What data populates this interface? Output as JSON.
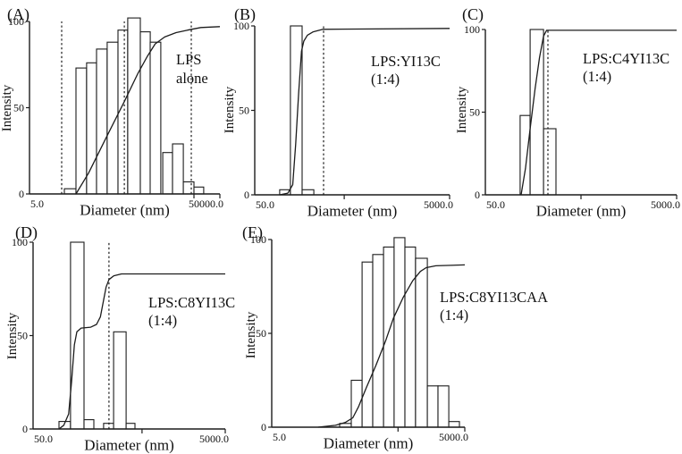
{
  "figure": {
    "background": "#ffffff",
    "ink_color": "#1c1c1c",
    "description": "Five-panel particle size distribution figure: intensity histograms with cumulative curves"
  },
  "chart_data": [
    {
      "id": "A",
      "type": "bar",
      "panel_label": "(A)",
      "annotation_lines": [
        "LPS",
        "alone"
      ],
      "xlabel": "Diameter (nm)",
      "ylabel": "Intensity",
      "x_min_label": "5.0",
      "x_max_label": "50000.0",
      "x_scale": "log",
      "ylim": [
        0,
        100
      ],
      "y_ticks": [
        0,
        50,
        100
      ],
      "y_tick_labels": [
        "0",
        "50",
        "100"
      ],
      "bars": [
        {
          "f0": 0.183,
          "f1": 0.244,
          "v": 3
        },
        {
          "f0": 0.244,
          "f1": 0.3,
          "v": 73
        },
        {
          "f0": 0.3,
          "f1": 0.352,
          "v": 76
        },
        {
          "f0": 0.352,
          "f1": 0.408,
          "v": 84
        },
        {
          "f0": 0.408,
          "f1": 0.465,
          "v": 88
        },
        {
          "f0": 0.465,
          "f1": 0.516,
          "v": 95
        },
        {
          "f0": 0.516,
          "f1": 0.582,
          "v": 102
        },
        {
          "f0": 0.582,
          "f1": 0.634,
          "v": 94
        },
        {
          "f0": 0.634,
          "f1": 0.69,
          "v": 88
        },
        {
          "f0": 0.7,
          "f1": 0.751,
          "v": 24
        },
        {
          "f0": 0.751,
          "f1": 0.808,
          "v": 29
        },
        {
          "f0": 0.808,
          "f1": 0.864,
          "v": 7
        },
        {
          "f0": 0.864,
          "f1": 0.915,
          "v": 4
        }
      ],
      "cumulative_curve": [
        [
          0.244,
          0
        ],
        [
          0.31,
          12
        ],
        [
          0.4,
          32
        ],
        [
          0.5,
          54
        ],
        [
          0.57,
          70
        ],
        [
          0.62,
          80
        ],
        [
          0.66,
          87
        ],
        [
          0.71,
          91
        ],
        [
          0.77,
          93.5
        ],
        [
          0.83,
          95
        ],
        [
          0.9,
          96.5
        ],
        [
          1.0,
          97
        ]
      ],
      "dashed_lines_f": [
        0.169,
        0.498,
        0.85
      ],
      "x_axis_ticks_f": [
        0.864,
        1.0
      ]
    },
    {
      "id": "B",
      "type": "bar",
      "panel_label": "(B)",
      "annotation_lines": [
        "LPS:YI13C",
        "(1:4)"
      ],
      "xlabel": "Diameter (nm)",
      "ylabel": "Intensity",
      "x_min_label": "50.0",
      "x_max_label": "5000.0",
      "x_scale": "log",
      "ylim": [
        0,
        100
      ],
      "y_ticks": [
        0,
        50,
        100
      ],
      "y_tick_labels": [
        "0",
        "50",
        "100"
      ],
      "bars": [
        {
          "f0": 0.128,
          "f1": 0.183,
          "v": 3
        },
        {
          "f0": 0.183,
          "f1": 0.243,
          "v": 100
        },
        {
          "f0": 0.243,
          "f1": 0.303,
          "v": 3
        }
      ],
      "cumulative_curve": [
        [
          0.128,
          0
        ],
        [
          0.17,
          1
        ],
        [
          0.195,
          6
        ],
        [
          0.21,
          30
        ],
        [
          0.225,
          60
        ],
        [
          0.24,
          85
        ],
        [
          0.252,
          91
        ],
        [
          0.27,
          94.5
        ],
        [
          0.3,
          96.5
        ],
        [
          0.35,
          98
        ],
        [
          1.0,
          98.5
        ]
      ],
      "dashed_lines_f": [
        0.353
      ],
      "x_axis_ticks_f": [
        0.459,
        1.0
      ]
    },
    {
      "id": "C",
      "type": "bar",
      "panel_label": "(C)",
      "annotation_lines": [
        "LPS:C4YI13C",
        "(1:4)"
      ],
      "xlabel": "Diameter (nm)",
      "ylabel": "Intensity",
      "x_min_label": "50.0",
      "x_max_label": "5000.0",
      "x_scale": "log",
      "ylim": [
        0,
        100
      ],
      "y_ticks": [
        0,
        50,
        100
      ],
      "y_tick_labels": [
        "0",
        "50",
        "100"
      ],
      "bars": [
        {
          "f0": 0.182,
          "f1": 0.234,
          "v": 48
        },
        {
          "f0": 0.234,
          "f1": 0.304,
          "v": 100
        },
        {
          "f0": 0.304,
          "f1": 0.369,
          "v": 40
        }
      ],
      "cumulative_curve": [
        [
          0.187,
          0
        ],
        [
          0.21,
          16
        ],
        [
          0.234,
          40
        ],
        [
          0.26,
          64
        ],
        [
          0.283,
          83
        ],
        [
          0.304,
          96
        ],
        [
          0.32,
          99.5
        ],
        [
          1.0,
          99.5
        ]
      ],
      "dashed_lines_f": [
        0.327
      ],
      "x_axis_ticks_f": [
        0.5,
        1.0
      ]
    },
    {
      "id": "D",
      "type": "bar",
      "panel_label": "(D)",
      "annotation_lines": [
        "LPS:C8YI13C",
        "(1:4)"
      ],
      "xlabel": "Diameter (nm)",
      "ylabel": "Intensity",
      "x_min_label": "50.0",
      "x_max_label": "5000.0",
      "x_scale": "log",
      "ylim": [
        0,
        100
      ],
      "y_ticks": [
        0,
        50,
        100
      ],
      "y_tick_labels": [
        "0",
        "50",
        "100"
      ],
      "bars": [
        {
          "f0": 0.135,
          "f1": 0.195,
          "v": 4
        },
        {
          "f0": 0.195,
          "f1": 0.265,
          "v": 100
        },
        {
          "f0": 0.265,
          "f1": 0.316,
          "v": 5
        },
        {
          "f0": 0.367,
          "f1": 0.419,
          "v": 3
        },
        {
          "f0": 0.419,
          "f1": 0.484,
          "v": 52
        },
        {
          "f0": 0.484,
          "f1": 0.53,
          "v": 3
        }
      ],
      "cumulative_curve": [
        [
          0.135,
          0
        ],
        [
          0.16,
          2
        ],
        [
          0.185,
          8
        ],
        [
          0.2,
          25
        ],
        [
          0.215,
          45
        ],
        [
          0.228,
          52
        ],
        [
          0.25,
          54
        ],
        [
          0.3,
          54.5
        ],
        [
          0.33,
          56
        ],
        [
          0.35,
          60
        ],
        [
          0.365,
          68
        ],
        [
          0.38,
          76
        ],
        [
          0.395,
          80
        ],
        [
          0.42,
          82
        ],
        [
          0.46,
          83
        ],
        [
          1.0,
          83
        ]
      ],
      "dashed_lines_f": [
        0.395
      ],
      "x_axis_ticks_f": [
        0.567,
        1.0
      ]
    },
    {
      "id": "E",
      "type": "bar",
      "panel_label": "(E)",
      "annotation_lines": [
        "LPS:C8YI13CAA",
        "(1:4)"
      ],
      "xlabel": "Diameter (nm)",
      "ylabel": "Intensity",
      "x_min_label": "5.0",
      "x_max_label": "5000.0",
      "x_scale": "log",
      "ylim": [
        0,
        100
      ],
      "y_ticks": [
        0,
        50,
        100
      ],
      "y_tick_labels": [
        "0",
        "50",
        "100"
      ],
      "bars": [
        {
          "f0": 0.352,
          "f1": 0.412,
          "v": 2
        },
        {
          "f0": 0.412,
          "f1": 0.468,
          "v": 25
        },
        {
          "f0": 0.468,
          "f1": 0.523,
          "v": 88
        },
        {
          "f0": 0.523,
          "f1": 0.579,
          "v": 92
        },
        {
          "f0": 0.579,
          "f1": 0.634,
          "v": 96
        },
        {
          "f0": 0.634,
          "f1": 0.69,
          "v": 101
        },
        {
          "f0": 0.69,
          "f1": 0.745,
          "v": 96
        },
        {
          "f0": 0.745,
          "f1": 0.806,
          "v": 90
        },
        {
          "f0": 0.806,
          "f1": 0.861,
          "v": 22
        },
        {
          "f0": 0.861,
          "f1": 0.917,
          "v": 22
        },
        {
          "f0": 0.917,
          "f1": 0.972,
          "v": 3
        }
      ],
      "cumulative_curve": [
        [
          0.24,
          0
        ],
        [
          0.33,
          1
        ],
        [
          0.38,
          2.5
        ],
        [
          0.42,
          5
        ],
        [
          0.45,
          11
        ],
        [
          0.49,
          21
        ],
        [
          0.54,
          33
        ],
        [
          0.59,
          46
        ],
        [
          0.63,
          58
        ],
        [
          0.68,
          69
        ],
        [
          0.73,
          78
        ],
        [
          0.77,
          83
        ],
        [
          0.8,
          85
        ],
        [
          0.85,
          86
        ],
        [
          1.0,
          86.5
        ]
      ],
      "dashed_lines_f": [],
      "x_axis_ticks_f": [
        0.654,
        1.0
      ]
    }
  ]
}
